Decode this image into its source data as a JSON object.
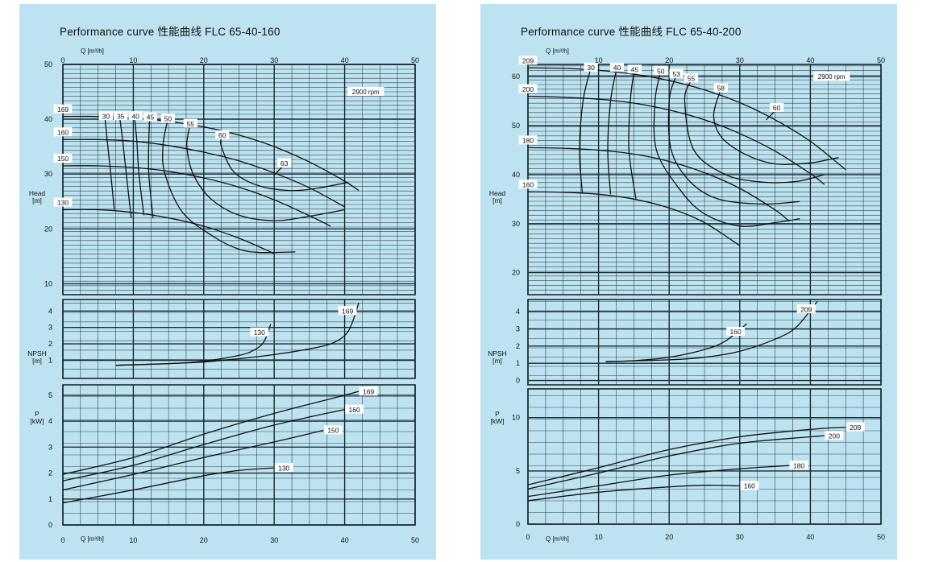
{
  "colors": {
    "panel_background": "#bde3f1",
    "grid": "#1b2a33",
    "curve": "#111111",
    "label_background": "#ffffff"
  },
  "charts": [
    {
      "title": "Performance curve 性能曲线  FLC 65-40-160",
      "speed_label": "2900 rpm",
      "q_axis_label": "Q [m³/h]",
      "q_ticks": [
        "0",
        "10",
        "20",
        "30",
        "40",
        "50"
      ],
      "head_axis_label": [
        "Head",
        "[m]"
      ],
      "head_ticks": [
        "10",
        "20",
        "30",
        "40",
        "50"
      ],
      "npsh_axis_label": [
        "NPSH",
        "[m]"
      ],
      "npsh_ticks": [
        "1",
        "2",
        "3",
        "4"
      ],
      "power_axis_label": [
        "P",
        "[kW]"
      ],
      "power_ticks": [
        "0",
        "1",
        "2",
        "3",
        "4",
        "5"
      ]
    },
    {
      "title": "Performance curve 性能曲线  FLC 65-40-200",
      "speed_label": "2900 rpm",
      "q_axis_label": "Q [m³/h]",
      "q_ticks": [
        "0",
        "10",
        "20",
        "30",
        "40",
        "50"
      ],
      "head_ticks": [
        "20",
        "30",
        "40",
        "50",
        "60"
      ],
      "head_axis_label": [
        "Head",
        "[m]"
      ],
      "npsh_axis_label": [
        "NPSH",
        "[m]"
      ],
      "npsh_ticks": [
        "0",
        "1",
        "2",
        "3",
        "4"
      ],
      "power_axis_label": [
        "P",
        "[kW]"
      ],
      "power_ticks": [
        "0",
        "5",
        "10"
      ]
    }
  ],
  "chart_data": [
    {
      "type": "line",
      "title": "Performance curve 性能曲线  FLC 65-40-160",
      "xlabel": "Q [m³/h]",
      "xlim": [
        0,
        50
      ],
      "head": {
        "ylabel": "Head [m]",
        "ylim": [
          8,
          50
        ],
        "impeller_curves": [
          {
            "name": "169",
            "x": [
              0,
              5,
              10,
              15,
              20,
              25,
              30,
              35,
              40,
              42
            ],
            "y": [
              40.5,
              40.5,
              40.2,
              39.6,
              38.6,
              37.1,
              35,
              32.2,
              28.7,
              27
            ]
          },
          {
            "name": "160",
            "x": [
              0,
              5,
              10,
              15,
              20,
              25,
              30,
              35,
              40
            ],
            "y": [
              36.3,
              36.3,
              36,
              35.2,
              34,
              32.4,
              30.2,
              27.5,
              24
            ]
          },
          {
            "name": "150",
            "x": [
              0,
              5,
              10,
              15,
              20,
              25,
              30,
              35,
              38
            ],
            "y": [
              31.5,
              31.5,
              31.2,
              30.5,
              29.3,
              27.6,
              25.3,
              22.4,
              20.5
            ]
          },
          {
            "name": "130",
            "x": [
              0,
              5,
              10,
              15,
              20,
              25,
              30
            ],
            "y": [
              23.5,
              23.5,
              23,
              22,
              20.5,
              18.3,
              15.5
            ]
          }
        ],
        "efficiency_curves": [
          {
            "name": "30",
            "x": [
              6,
              6.3,
              6.8,
              7.3
            ],
            "y": [
              40,
              36,
              30,
              23.5
            ]
          },
          {
            "name": "35",
            "x": [
              8.1,
              8.5,
              9,
              9.7
            ],
            "y": [
              40,
              36,
              30,
              22
            ]
          },
          {
            "name": "40",
            "x": [
              10.2,
              10.5,
              10.8,
              11.5
            ],
            "y": [
              40,
              36,
              30,
              22.5
            ]
          },
          {
            "name": "45",
            "x": [
              12.3,
              12.2,
              12.2,
              12.8
            ],
            "y": [
              39.8,
              36,
              30,
              22
            ]
          },
          {
            "name": "50",
            "x": [
              14.8,
              14.2,
              14.5,
              17,
              21.5,
              25,
              28,
              33
            ],
            "y": [
              39.5,
              35,
              30,
              23,
              18.5,
              16.3,
              15.7,
              15.8
            ]
          },
          {
            "name": "55",
            "x": [
              18,
              17.6,
              18.5,
              21,
              25,
              30,
              35,
              40
            ],
            "y": [
              38.6,
              35,
              30,
              25.5,
              22.5,
              21.5,
              22.3,
              23.5
            ]
          },
          {
            "name": "60",
            "x": [
              22.5,
              22.5,
              24.2,
              27.5,
              32,
              36,
              40.5
            ],
            "y": [
              36.5,
              35,
              30.5,
              28,
              27,
              27.4,
              28.5
            ]
          },
          {
            "name": "63",
            "x": [
              30.5
            ],
            "y": [
              30.5
            ]
          }
        ]
      },
      "npsh": {
        "ylabel": "NPSH [m]",
        "ylim": [
          -0.1,
          4.7
        ],
        "curves": [
          {
            "name": "130",
            "x": [
              7.5,
              15,
              20,
              25,
              27,
              28.5,
              29.5
            ],
            "y": [
              0.7,
              0.8,
              0.95,
              1.3,
              1.6,
              2.1,
              3.2
            ]
          },
          {
            "name": "169",
            "x": [
              7.5,
              15,
              20,
              25,
              30,
              35,
              38,
              40,
              41,
              42
            ],
            "y": [
              0.7,
              0.8,
              0.9,
              1.1,
              1.35,
              1.7,
              2,
              2.5,
              3.2,
              4.5
            ]
          }
        ]
      },
      "power": {
        "ylabel": "P [kW]",
        "ylim": [
          0,
          5.4
        ],
        "curves": [
          {
            "name": "169",
            "x": [
              0,
              10,
              20,
              30,
              40,
              42
            ],
            "y": [
              1.95,
              2.6,
              3.5,
              4.3,
              5,
              5.15
            ]
          },
          {
            "name": "160",
            "x": [
              0,
              10,
              20,
              30,
              40
            ],
            "y": [
              1.7,
              2.3,
              3.1,
              3.85,
              4.45
            ]
          },
          {
            "name": "150",
            "x": [
              0,
              10,
              20,
              30,
              37
            ],
            "y": [
              1.35,
              1.95,
              2.6,
              3.2,
              3.65
            ]
          },
          {
            "name": "130",
            "x": [
              0,
              10,
              20,
              25,
              30
            ],
            "y": [
              0.85,
              1.35,
              1.9,
              2.1,
              2.2
            ]
          }
        ]
      }
    },
    {
      "type": "line",
      "title": "Performance curve 性能曲线  FLC 65-40-200",
      "xlabel": "Q [m³/h]",
      "xlim": [
        0,
        50
      ],
      "head": {
        "ylabel": "Head [m]",
        "ylim": [
          15.5,
          62.5
        ],
        "impeller_curves": [
          {
            "name": "209",
            "x": [
              0,
              5,
              10,
              15,
              20,
              25,
              30,
              35,
              40,
              45
            ],
            "y": [
              61.8,
              61.7,
              61.3,
              60.5,
              59.2,
              57.3,
              54.7,
              51.2,
              46.8,
              41
            ]
          },
          {
            "name": "200",
            "x": [
              0,
              5,
              10,
              15,
              20,
              25,
              30,
              35,
              40,
              42
            ],
            "y": [
              56,
              55.8,
              55.4,
              54.6,
              53.2,
              51.2,
              48.4,
              44.8,
              40.2,
              38
            ]
          },
          {
            "name": "180",
            "x": [
              0,
              5,
              10,
              15,
              20,
              25,
              30,
              35,
              37
            ],
            "y": [
              45.5,
              45.4,
              45,
              44.2,
              42.7,
              40.4,
              37.2,
              32.8,
              30.5
            ]
          },
          {
            "name": "160",
            "x": [
              0,
              5,
              10,
              15,
              20,
              25,
              30
            ],
            "y": [
              36.5,
              36.4,
              36,
              35,
              33.2,
              30.2,
              25.5
            ]
          }
        ],
        "efficiency_curves": [
          {
            "name": "30",
            "x": [
              8.8,
              7.8,
              7.3,
              7.7
            ],
            "y": [
              61.2,
              55,
              45,
              36.2
            ]
          },
          {
            "name": "40",
            "x": [
              12.5,
              11.7,
              11.3,
              11.7
            ],
            "y": [
              61.2,
              55,
              45,
              36
            ]
          },
          {
            "name": "45",
            "x": [
              15,
              14.5,
              14.3,
              15.3
            ],
            "y": [
              60.8,
              55,
              45,
              35
            ]
          },
          {
            "name": "50",
            "x": [
              18.7,
              18,
              18.2,
              21.5,
              25,
              30,
              35,
              38.5
            ],
            "y": [
              60.5,
              55,
              45,
              37,
              32,
              29.5,
              30.2,
              31
            ]
          },
          {
            "name": "53",
            "x": [
              20.9,
              20,
              20.3,
              23,
              27,
              33,
              38.5
            ],
            "y": [
              59.9,
              55,
              45,
              38.5,
              35,
              34,
              34.5
            ]
          },
          {
            "name": "55",
            "x": [
              23,
              22.2,
              23.5,
              28,
              33,
              38,
              42
            ],
            "y": [
              59,
              55,
              45,
              40,
              38.5,
              38.6,
              40
            ]
          },
          {
            "name": "58",
            "x": [
              27.2,
              26.3,
              27.5,
              31,
              35,
              40,
              44
            ],
            "y": [
              57,
              52,
              47.5,
              44,
              42.2,
              42.4,
              43.5
            ]
          },
          {
            "name": "60",
            "x": [
              34.3
            ],
            "y": [
              52
            ]
          }
        ]
      },
      "npsh": {
        "ylabel": "NPSH [m]",
        "ylim": [
          -0.25,
          4.7
        ],
        "curves": [
          {
            "name": "160",
            "x": [
              11,
              15,
              20,
              25,
              28,
              31
            ],
            "y": [
              1.1,
              1.15,
              1.35,
              1.8,
              2.3,
              3.3
            ]
          },
          {
            "name": "209",
            "x": [
              11,
              20,
              25,
              30,
              35,
              38,
              41
            ],
            "y": [
              1.1,
              1.2,
              1.35,
              1.7,
              2.4,
              3.1,
              4.6
            ]
          }
        ]
      },
      "power": {
        "ylabel": "P [kW]",
        "ylim": [
          0,
          12.7
        ],
        "curves": [
          {
            "name": "209",
            "x": [
              0,
              10,
              20,
              30,
              40,
              45
            ],
            "y": [
              3.7,
              5.3,
              7,
              8.2,
              8.9,
              9.1
            ]
          },
          {
            "name": "200",
            "x": [
              0,
              10,
              20,
              30,
              40,
              42
            ],
            "y": [
              3.3,
              4.8,
              6.4,
              7.6,
              8.2,
              8.3
            ]
          },
          {
            "name": "180",
            "x": [
              0,
              10,
              20,
              30,
              37
            ],
            "y": [
              2.6,
              3.6,
              4.6,
              5.2,
              5.5
            ]
          },
          {
            "name": "160",
            "x": [
              0,
              10,
              20,
              25,
              30
            ],
            "y": [
              2.2,
              3,
              3.5,
              3.65,
              3.6
            ]
          }
        ]
      }
    }
  ]
}
